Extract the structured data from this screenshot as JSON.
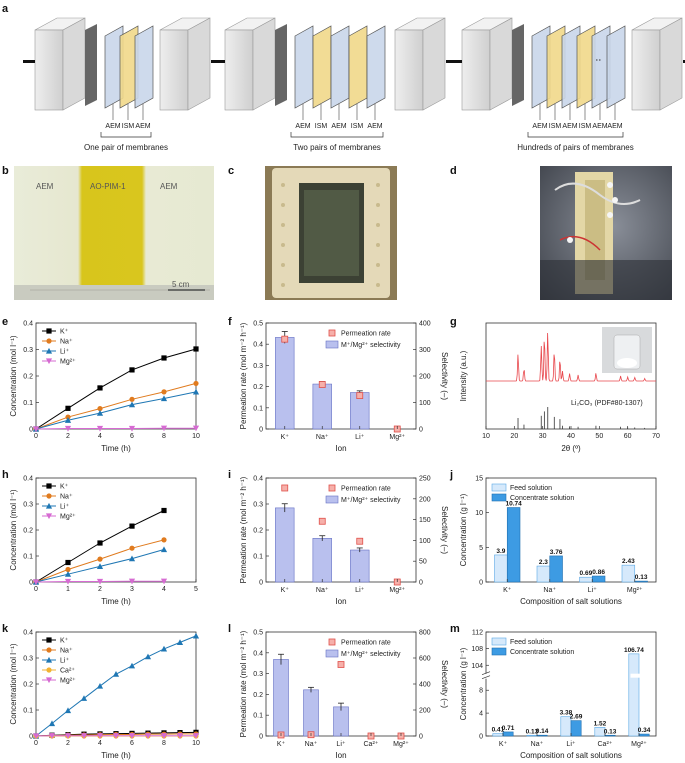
{
  "panel_letters": {
    "a": "a",
    "b": "b",
    "c": "c",
    "d": "d",
    "e": "e",
    "f": "f",
    "g": "g",
    "h": "h",
    "i": "i",
    "j": "j",
    "k": "k",
    "l": "l",
    "m": "m"
  },
  "panel_a": {
    "stack1": {
      "membranes": [
        "AEM",
        "ISM",
        "AEM"
      ],
      "caption": "One pair of membranes"
    },
    "stack2": {
      "membranes": [
        "AEM",
        "ISM",
        "AEM",
        "ISM",
        "AEM"
      ],
      "caption": "Two pairs of membranes"
    },
    "stack3": {
      "membranes": [
        "AEM",
        "ISM",
        "AEM",
        "ISM",
        "AEM",
        "AEM"
      ],
      "caption": "Hundreds of pairs of membranes"
    }
  },
  "panel_b": {
    "labels": [
      "AEM",
      "AO-PIM-1",
      "AEM"
    ],
    "scale_bar": "5 cm"
  },
  "chart_data": [
    {
      "id": "e",
      "type": "line",
      "title": "",
      "xlabel": "Time (h)",
      "ylabel": "Concentration (mol l⁻¹)",
      "xlim": [
        0,
        10
      ],
      "ylim": [
        0,
        0.4
      ],
      "xticks": [
        "0",
        "2",
        "4",
        "6",
        "8",
        "10"
      ],
      "yticks": [
        "0",
        "0.1",
        "0.2",
        "0.3",
        "0.4"
      ],
      "legend": [
        "K⁺",
        "Na⁺",
        "Li⁺",
        "Mg²⁺"
      ],
      "series": [
        {
          "name": "K⁺",
          "color": "#000000",
          "marker": "square",
          "x": [
            0,
            2,
            4,
            6,
            8,
            10
          ],
          "y": [
            0,
            0.078,
            0.155,
            0.223,
            0.268,
            0.302
          ]
        },
        {
          "name": "Na⁺",
          "color": "#e07b1f",
          "marker": "circle",
          "x": [
            0,
            2,
            4,
            6,
            8,
            10
          ],
          "y": [
            0,
            0.045,
            0.077,
            0.112,
            0.14,
            0.172
          ]
        },
        {
          "name": "Li⁺",
          "color": "#1f77b4",
          "marker": "triangle",
          "x": [
            0,
            2,
            4,
            6,
            8,
            10
          ],
          "y": [
            0,
            0.033,
            0.06,
            0.092,
            0.115,
            0.14
          ]
        },
        {
          "name": "Mg²⁺",
          "color": "#d66bd2",
          "marker": "tri-down",
          "x": [
            0,
            2,
            4,
            6,
            8,
            10
          ],
          "y": [
            0,
            0.002,
            0.002,
            0.002,
            0.003,
            0.003
          ]
        }
      ]
    },
    {
      "id": "f",
      "type": "bar",
      "xlabel": "Ion",
      "ylabel": "Permeation rate (mol m⁻² h⁻¹)",
      "ylabel2": "Selectivity (–)",
      "categories": [
        "K⁺",
        "Na⁺",
        "Li⁺",
        "Mg²⁺"
      ],
      "ylim": [
        0,
        0.5
      ],
      "ylim2": [
        0,
        400
      ],
      "yticks": [
        "0",
        "0.1",
        "0.2",
        "0.3",
        "0.4",
        "0.5"
      ],
      "yticks2": [
        "0",
        "100",
        "200",
        "300",
        "400"
      ],
      "legend": [
        "Permeation rate",
        "M⁺/Mg²⁺ selectivity"
      ],
      "bars": [
        0.432,
        0.212,
        0.172,
        0
      ],
      "errors": [
        0.028,
        0.012,
        0.008,
        0
      ],
      "selectivity": [
        339,
        168,
        126,
        0
      ]
    },
    {
      "id": "g",
      "type": "line",
      "xlabel": "2θ (º)",
      "ylabel": "Intensity (a.u.)",
      "xlim": [
        10,
        70
      ],
      "xticks": [
        "10",
        "20",
        "30",
        "40",
        "50",
        "60",
        "70"
      ],
      "annotation": "Li₂CO₃ (PDF#80-1307)",
      "peaks_measured": [
        [
          21.3,
          0.55
        ],
        [
          23.4,
          0.25
        ],
        [
          29.5,
          0.7
        ],
        [
          30.6,
          0.92
        ],
        [
          31.8,
          1.0
        ],
        [
          34.1,
          0.62
        ],
        [
          36.1,
          0.45
        ],
        [
          37.0,
          0.2
        ],
        [
          39.5,
          0.15
        ],
        [
          42.5,
          0.12
        ],
        [
          48.8,
          0.16
        ],
        [
          57.5,
          0.1
        ],
        [
          60.0,
          0.08
        ],
        [
          62.5,
          0.07
        ],
        [
          66,
          0.05
        ]
      ],
      "peaks_reference": [
        [
          21.3,
          0.5
        ],
        [
          23.4,
          0.2
        ],
        [
          29.5,
          0.6
        ],
        [
          30.6,
          0.8
        ],
        [
          31.8,
          1.0
        ],
        [
          34.1,
          0.55
        ],
        [
          36.1,
          0.45
        ],
        [
          37.0,
          0.15
        ],
        [
          39.5,
          0.12
        ],
        [
          42.5,
          0.1
        ],
        [
          48.8,
          0.15
        ],
        [
          57.5,
          0.1
        ],
        [
          60.0,
          0.08
        ],
        [
          62.5,
          0.07
        ],
        [
          66,
          0.05
        ]
      ]
    },
    {
      "id": "h",
      "type": "line",
      "xlabel": "Time (h)",
      "ylabel": "Concentration (mol l⁻¹)",
      "xlim": [
        0,
        5
      ],
      "ylim": [
        0,
        0.4
      ],
      "xticks": [
        "0",
        "1",
        "2",
        "3",
        "4",
        "5"
      ],
      "yticks": [
        "0",
        "0.1",
        "0.2",
        "0.3",
        "0.4"
      ],
      "legend": [
        "K⁺",
        "Na⁺",
        "Li⁺",
        "Mg²⁺"
      ],
      "series": [
        {
          "name": "K⁺",
          "color": "#000000",
          "marker": "square",
          "x": [
            0,
            1,
            2,
            3,
            4
          ],
          "y": [
            0,
            0.075,
            0.15,
            0.215,
            0.275
          ]
        },
        {
          "name": "Na⁺",
          "color": "#e07b1f",
          "marker": "circle",
          "x": [
            0,
            1,
            2,
            3,
            4
          ],
          "y": [
            0,
            0.048,
            0.088,
            0.13,
            0.162
          ]
        },
        {
          "name": "Li⁺",
          "color": "#1f77b4",
          "marker": "triangle",
          "x": [
            0,
            1,
            2,
            3,
            4
          ],
          "y": [
            0,
            0.03,
            0.06,
            0.09,
            0.125
          ]
        },
        {
          "name": "Mg²⁺",
          "color": "#d66bd2",
          "marker": "tri-down",
          "x": [
            0,
            1,
            2,
            3,
            4
          ],
          "y": [
            0,
            0.002,
            0.002,
            0.003,
            0.003
          ]
        }
      ]
    },
    {
      "id": "i",
      "type": "bar",
      "xlabel": "Ion",
      "ylabel": "Permeation rate (mol m⁻² h⁻¹)",
      "ylabel2": "Selectivity (–)",
      "categories": [
        "K⁺",
        "Na⁺",
        "Li⁺",
        "Mg²⁺"
      ],
      "ylim": [
        0,
        0.4
      ],
      "ylim2": [
        0,
        250
      ],
      "yticks": [
        "0",
        "0.1",
        "0.2",
        "0.3",
        "0.4"
      ],
      "yticks2": [
        "0",
        "50",
        "100",
        "150",
        "200",
        "250"
      ],
      "legend": [
        "Permeation rate",
        "M⁺/Mg²⁺ selectivity"
      ],
      "bars": [
        0.285,
        0.168,
        0.123,
        0
      ],
      "errors": [
        0.016,
        0.01,
        0.008,
        0
      ],
      "selectivity": [
        226,
        146,
        98,
        0
      ]
    },
    {
      "id": "j",
      "type": "bar",
      "xlabel": "Composition of salt solutions",
      "ylabel": "Concentration (g l⁻¹)",
      "categories": [
        "K⁺",
        "Na⁺",
        "Li⁺",
        "Mg²⁺"
      ],
      "ylim": [
        0,
        15
      ],
      "yticks": [
        "0",
        "5",
        "10",
        "15"
      ],
      "legend": [
        "Feed solution",
        "Concentrate solution"
      ],
      "series": [
        {
          "name": "Feed solution",
          "values": [
            3.9,
            2.3,
            0.69,
            2.43
          ],
          "labels": [
            "3.9",
            "2.3",
            "0.69",
            "2.43"
          ]
        },
        {
          "name": "Concentrate solution",
          "values": [
            10.74,
            3.76,
            0.86,
            0.13
          ],
          "labels": [
            "10.74",
            "3.76",
            "0.86",
            "0.13"
          ]
        }
      ]
    },
    {
      "id": "k",
      "type": "line",
      "xlabel": "Time (h)",
      "ylabel": "Concentration (mol l⁻¹)",
      "xlim": [
        0,
        10
      ],
      "ylim": [
        0,
        0.4
      ],
      "xticks": [
        "0",
        "2",
        "4",
        "6",
        "8",
        "10"
      ],
      "yticks": [
        "0",
        "0.1",
        "0.2",
        "0.3",
        "0.4"
      ],
      "legend": [
        "K⁺",
        "Na⁺",
        "Li⁺",
        "Ca²⁺",
        "Mg²⁺"
      ],
      "series": [
        {
          "name": "K⁺",
          "color": "#000000",
          "marker": "square",
          "x": [
            0,
            1,
            2,
            3,
            4,
            5,
            6,
            7,
            8,
            9,
            10
          ],
          "y": [
            0,
            0.003,
            0.005,
            0.007,
            0.008,
            0.009,
            0.01,
            0.011,
            0.012,
            0.013,
            0.014
          ]
        },
        {
          "name": "Na⁺",
          "color": "#e07b1f",
          "marker": "circle",
          "x": [
            0,
            1,
            2,
            3,
            4,
            5,
            6,
            7,
            8,
            9,
            10
          ],
          "y": [
            0,
            0.002,
            0.003,
            0.004,
            0.005,
            0.006,
            0.006,
            0.007,
            0.007,
            0.008,
            0.008
          ]
        },
        {
          "name": "Li⁺",
          "color": "#1f77b4",
          "marker": "triangle",
          "x": [
            0,
            1,
            2,
            3,
            4,
            5,
            6,
            7,
            8,
            9,
            10
          ],
          "y": [
            0,
            0.048,
            0.098,
            0.145,
            0.192,
            0.238,
            0.27,
            0.305,
            0.335,
            0.36,
            0.385
          ]
        },
        {
          "name": "Ca²⁺",
          "color": "#f2b233",
          "marker": "circle",
          "x": [
            0,
            1,
            2,
            3,
            4,
            5,
            6,
            7,
            8,
            9,
            10
          ],
          "y": [
            0,
            0,
            0,
            0,
            0,
            0,
            0,
            0,
            0,
            0,
            0
          ]
        },
        {
          "name": "Mg²⁺",
          "color": "#d66bd2",
          "marker": "tri-down",
          "x": [
            0,
            1,
            2,
            3,
            4,
            5,
            6,
            7,
            8,
            9,
            10
          ],
          "y": [
            0,
            0.001,
            0.001,
            0.001,
            0.001,
            0.001,
            0.001,
            0.001,
            0.001,
            0.001,
            0.001
          ]
        }
      ]
    },
    {
      "id": "l",
      "type": "bar",
      "xlabel": "Ion",
      "ylabel": "Permeation rate (mol m⁻² h⁻¹)",
      "ylabel2": "Selectivity (–)",
      "categories": [
        "K⁺",
        "Na⁺",
        "Li⁺",
        "Ca²⁺",
        "Mg²⁺"
      ],
      "ylim": [
        0,
        0.5
      ],
      "ylim2": [
        0,
        800
      ],
      "yticks": [
        "0",
        "0.1",
        "0.2",
        "0.3",
        "0.4",
        "0.5"
      ],
      "yticks2": [
        "0",
        "200",
        "400",
        "600",
        "800"
      ],
      "legend": [
        "Permeation rate",
        "M⁺/Mg²⁺ selectivity"
      ],
      "bars": [
        0.368,
        0.222,
        0.14,
        0,
        0
      ],
      "errors": [
        0.025,
        0.012,
        0.018,
        0,
        0
      ],
      "selectivity": [
        8,
        10,
        550,
        0,
        0
      ]
    },
    {
      "id": "m",
      "type": "bar",
      "xlabel": "Composition of salt solutions",
      "ylabel": "Concentration (g l⁻¹)",
      "categories": [
        "K⁺",
        "Na⁺",
        "Li⁺",
        "Ca²⁺",
        "Mg²⁺"
      ],
      "yticks": [
        "0",
        "4",
        "8",
        "104",
        "108",
        "112"
      ],
      "axis_break": [
        10,
        102
      ],
      "legend": [
        "Feed solution",
        "Concentrate solution"
      ],
      "series": [
        {
          "name": "Feed solution",
          "values": [
            0.41,
            0.13,
            3.38,
            1.52,
            106.74
          ],
          "labels": [
            "0.41",
            "0.13",
            "3.38",
            "1.52",
            "106.74"
          ]
        },
        {
          "name": "Concentrate solution",
          "values": [
            0.71,
            0.14,
            2.69,
            0.13,
            0.34
          ],
          "labels": [
            "0.71",
            "0.14",
            "2.69",
            "0.13",
            "0.34"
          ]
        }
      ]
    }
  ]
}
